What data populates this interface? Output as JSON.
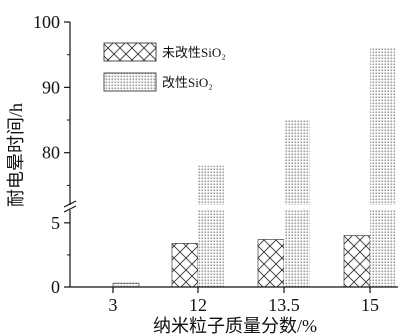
{
  "chart_data": {
    "type": "bar",
    "categories": [
      "3",
      "12",
      "13.5",
      "15"
    ],
    "series": [
      {
        "name": "未改性SiO₂",
        "values": [
          0,
          3.4,
          3.7,
          4.0
        ],
        "pattern": "crosshatch"
      },
      {
        "name": "改性SiO₂",
        "values": [
          0.3,
          78,
          85,
          96
        ],
        "pattern": "dots"
      }
    ],
    "xlabel": "纳米粒子质量分数/%",
    "ylabel": "耐电晕时间/h",
    "axis_break": {
      "lower": [
        0,
        6
      ],
      "upper": [
        72,
        100
      ]
    },
    "yticks_lower": [
      0,
      5
    ],
    "yticks_upper": [
      80,
      90,
      100
    ],
    "legend_position": "top-left",
    "colors": {
      "axis": "#111111",
      "bar_edge": "#222222",
      "dot_fill": "#b8b8b8"
    }
  }
}
